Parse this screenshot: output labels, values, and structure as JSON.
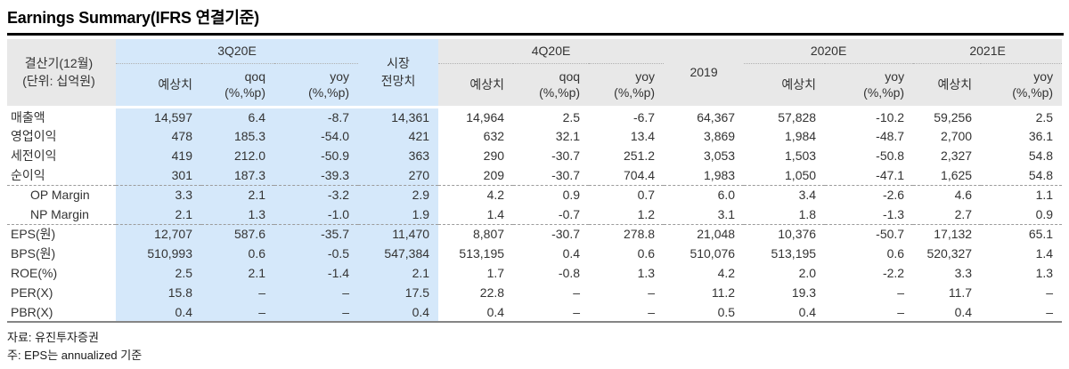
{
  "page": {
    "title": "Earnings Summary(IFRS 연결기준)",
    "source": "자료: 유진투자증권",
    "note": "주: EPS는 annualized 기준"
  },
  "table": {
    "corner": {
      "line1": "결산기(12월)",
      "line2": "(단위: 십억원)"
    },
    "groups": {
      "q3": "3Q20E",
      "market_line1": "시장",
      "market_line2": "전망치",
      "q4": "4Q20E",
      "y2019": "2019",
      "y2020": "2020E",
      "y2021": "2021E"
    },
    "subcols": [
      {
        "l1": "예상치",
        "l2": "",
        "hl": true
      },
      {
        "l1": "qoq",
        "l2": "(%,%p)",
        "hl": true
      },
      {
        "l1": "yoy",
        "l2": "(%,%p)",
        "hl": true
      },
      {
        "l1": "예상치",
        "l2": "",
        "hl": false
      },
      {
        "l1": "qoq",
        "l2": "(%,%p)",
        "hl": false
      },
      {
        "l1": "yoy",
        "l2": "(%,%p)",
        "hl": false
      },
      {
        "l1": "예상치",
        "l2": "",
        "hl": false
      },
      {
        "l1": "yoy",
        "l2": "(%,%p)",
        "hl": false
      },
      {
        "l1": "예상치",
        "l2": "",
        "hl": false
      },
      {
        "l1": "yoy",
        "l2": "(%,%p)",
        "hl": false
      }
    ],
    "rows": [
      {
        "label": "매출액",
        "indent": false,
        "section": false,
        "values": [
          "14,597",
          "6.4",
          "-8.7",
          "14,361",
          "14,964",
          "2.5",
          "-6.7",
          "64,367",
          "57,828",
          "-10.2",
          "59,256",
          "2.5"
        ]
      },
      {
        "label": "영업이익",
        "indent": false,
        "section": false,
        "values": [
          "478",
          "185.3",
          "-54.0",
          "421",
          "632",
          "32.1",
          "13.4",
          "3,869",
          "1,984",
          "-48.7",
          "2,700",
          "36.1"
        ]
      },
      {
        "label": "세전이익",
        "indent": false,
        "section": false,
        "values": [
          "419",
          "212.0",
          "-50.9",
          "363",
          "290",
          "-30.7",
          "251.2",
          "3,053",
          "1,503",
          "-50.8",
          "2,327",
          "54.8"
        ]
      },
      {
        "label": "순이익",
        "indent": false,
        "section": false,
        "values": [
          "301",
          "187.3",
          "-39.3",
          "270",
          "209",
          "-30.7",
          "704.4",
          "1,983",
          "1,050",
          "-47.1",
          "1,625",
          "54.8"
        ]
      },
      {
        "label": "OP Margin",
        "indent": true,
        "section": true,
        "values": [
          "3.3",
          "2.1",
          "-3.2",
          "2.9",
          "4.2",
          "0.9",
          "0.7",
          "6.0",
          "3.4",
          "-2.6",
          "4.6",
          "1.1"
        ]
      },
      {
        "label": "NP Margin",
        "indent": true,
        "section": false,
        "values": [
          "2.1",
          "1.3",
          "-1.0",
          "1.9",
          "1.4",
          "-0.7",
          "1.2",
          "3.1",
          "1.8",
          "-1.3",
          "2.7",
          "0.9"
        ]
      },
      {
        "label": "EPS(원)",
        "indent": false,
        "section": true,
        "values": [
          "12,707",
          "587.6",
          "-35.7",
          "11,470",
          "8,807",
          "-30.7",
          "278.8",
          "21,048",
          "10,376",
          "-50.7",
          "17,132",
          "65.1"
        ]
      },
      {
        "label": "BPS(원)",
        "indent": false,
        "section": false,
        "values": [
          "510,993",
          "0.6",
          "-0.5",
          "547,384",
          "513,195",
          "0.4",
          "0.6",
          "510,076",
          "513,195",
          "0.6",
          "520,327",
          "1.4"
        ]
      },
      {
        "label": "ROE(%)",
        "indent": false,
        "section": false,
        "values": [
          "2.5",
          "2.1",
          "-1.4",
          "2.1",
          "1.7",
          "-0.8",
          "1.3",
          "4.2",
          "2.0",
          "-2.2",
          "3.3",
          "1.3"
        ]
      },
      {
        "label": "PER(X)",
        "indent": false,
        "section": false,
        "values": [
          "15.8",
          "–",
          "–",
          "17.5",
          "22.8",
          "–",
          "–",
          "11.2",
          "19.3",
          "–",
          "11.7",
          "–"
        ]
      },
      {
        "label": "PBR(X)",
        "indent": false,
        "section": false,
        "values": [
          "0.4",
          "–",
          "–",
          "0.4",
          "0.4",
          "–",
          "–",
          "0.5",
          "0.4",
          "–",
          "0.4",
          "–"
        ]
      }
    ],
    "highlight_value_cols": [
      0,
      1,
      2,
      3
    ],
    "colors": {
      "highlight": "#d5e8fa",
      "header_gray": "#e8e8e8",
      "top_rule": "#000000",
      "bottom_rule": "#858585"
    }
  }
}
